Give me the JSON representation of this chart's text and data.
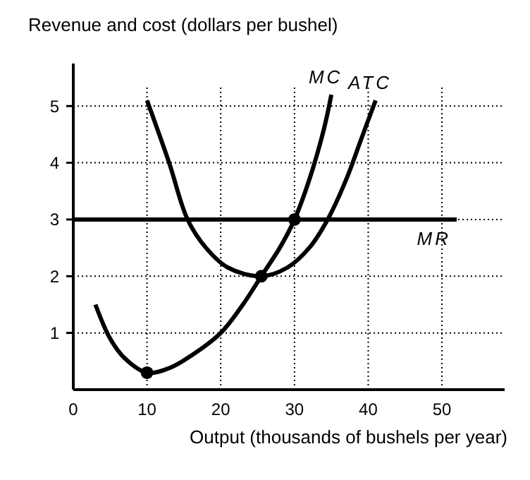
{
  "chart_data": {
    "type": "line",
    "xlabel": "Output (thousands of bushels per year)",
    "ylabel": "Revenue and cost (dollars per bushel)",
    "xlim": [
      0,
      58.5
    ],
    "ylim": [
      0,
      5.75
    ],
    "xticks": [
      0,
      10,
      20,
      30,
      40,
      50
    ],
    "yticks": [
      1,
      2,
      3,
      4,
      5
    ],
    "grid": true,
    "series": [
      {
        "name": "MC",
        "color": "#000000",
        "x": [
          3,
          5,
          7,
          10,
          13,
          16,
          20,
          23,
          25.5,
          28,
          30,
          32,
          34,
          35
        ],
        "values": [
          1.5,
          0.9,
          0.55,
          0.3,
          0.38,
          0.6,
          1.0,
          1.5,
          2.0,
          2.5,
          3.0,
          3.7,
          4.6,
          5.2
        ]
      },
      {
        "name": "ATC",
        "color": "#000000",
        "x": [
          10,
          13,
          15.5,
          18,
          21,
          25.5,
          29,
          32,
          34.5,
          37,
          39,
          41
        ],
        "values": [
          5.1,
          4.0,
          3.0,
          2.5,
          2.15,
          2.0,
          2.15,
          2.5,
          3.0,
          3.7,
          4.4,
          5.1
        ]
      },
      {
        "name": "MR",
        "color": "#000000",
        "x": [
          0,
          52
        ],
        "values": [
          3,
          3
        ]
      },
      {
        "type": "scatter",
        "marker": "circle",
        "color": "#000000",
        "x": [
          10,
          25.5,
          30
        ],
        "values": [
          0.3,
          2.0,
          3.0
        ]
      }
    ]
  }
}
